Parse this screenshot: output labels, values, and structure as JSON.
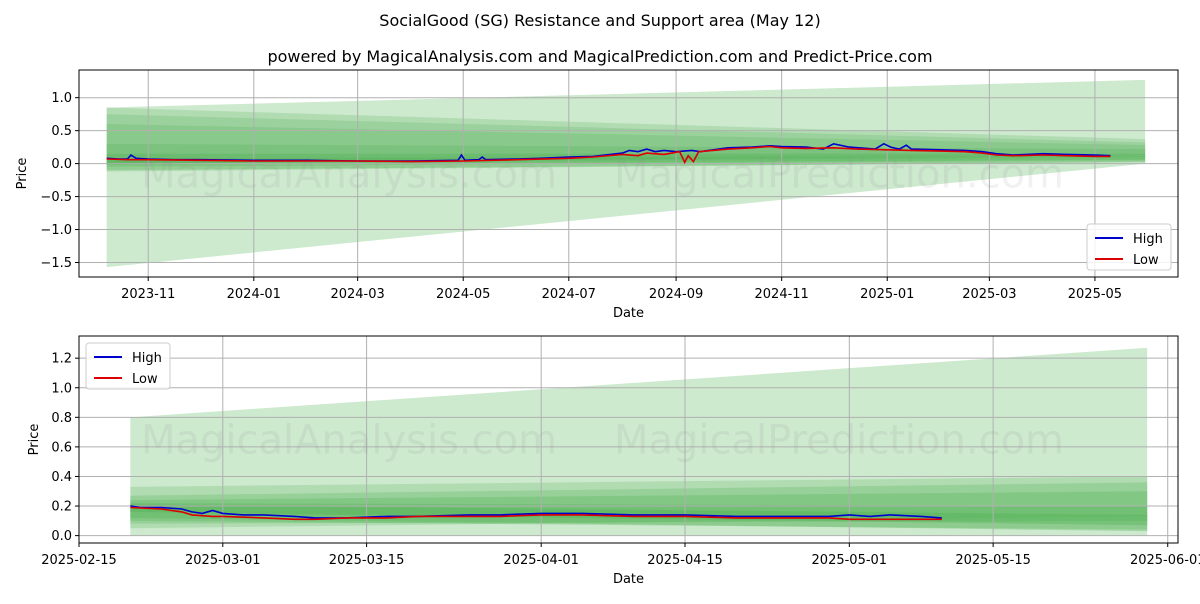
{
  "header": {
    "title": "SocialGood (SG) Resistance and Support area (May 12)",
    "subtitle": "powered by MagicalAnalysis.com and MagicalPrediction.com and Predict-Price.com"
  },
  "watermarks": [
    "MagicalAnalysis.com",
    "MagicalPrediction.com"
  ],
  "colors": {
    "high": "#0000cc",
    "low": "#dd0000",
    "band": "#4caf50",
    "grid": "#b0b0b0"
  },
  "chart_data": [
    {
      "type": "line",
      "id": "top",
      "xlabel": "Date",
      "ylabel": "Price",
      "xlim": [
        "2023-09-22",
        "2025-06-18"
      ],
      "ylim": [
        -1.72,
        1.42
      ],
      "xticks": [
        {
          "date": "2023-11-01",
          "label": "2023-11"
        },
        {
          "date": "2024-01-01",
          "label": "2024-01"
        },
        {
          "date": "2024-03-01",
          "label": "2024-03"
        },
        {
          "date": "2024-05-01",
          "label": "2024-05"
        },
        {
          "date": "2024-07-01",
          "label": "2024-07"
        },
        {
          "date": "2024-09-01",
          "label": "2024-09"
        },
        {
          "date": "2024-11-01",
          "label": "2024-11"
        },
        {
          "date": "2025-01-01",
          "label": "2025-01"
        },
        {
          "date": "2025-03-01",
          "label": "2025-03"
        },
        {
          "date": "2025-05-01",
          "label": "2025-05"
        }
      ],
      "yticks": [
        {
          "v": 1.0,
          "label": "1.0"
        },
        {
          "v": 0.5,
          "label": "0.5"
        },
        {
          "v": 0.0,
          "label": "0.0"
        },
        {
          "v": -0.5,
          "label": "−0.5"
        },
        {
          "v": -1.0,
          "label": "−1.0"
        },
        {
          "v": -1.5,
          "label": "−1.5"
        }
      ],
      "legend": {
        "position": "lower-right",
        "entries": [
          "High",
          "Low"
        ]
      },
      "bands": [
        {
          "x0": "2023-10-08",
          "x1": "2025-05-30",
          "y0a": -1.57,
          "y0b": 0.85,
          "y1a": 0.0,
          "y1b": 1.27,
          "opacity": 0.28
        },
        {
          "x0": "2023-10-08",
          "x1": "2025-05-30",
          "y0a": 0.0,
          "y0b": 0.85,
          "y1a": 0.13,
          "y1b": 0.37,
          "opacity": 0.22
        },
        {
          "x0": "2023-10-08",
          "x1": "2025-05-30",
          "y0a": 0.0,
          "y0b": 0.75,
          "y1a": 0.1,
          "y1b": 0.32,
          "opacity": 0.22
        },
        {
          "x0": "2023-10-08",
          "x1": "2025-05-30",
          "y0a": -0.12,
          "y0b": 0.6,
          "y1a": 0.03,
          "y1b": 0.28,
          "opacity": 0.22
        },
        {
          "x0": "2023-10-08",
          "x1": "2025-05-30",
          "y0a": -0.05,
          "y0b": 0.3,
          "y1a": 0.05,
          "y1b": 0.22,
          "opacity": 0.25
        },
        {
          "x0": "2023-10-08",
          "x1": "2025-05-30",
          "y0a": -0.1,
          "y0b": 0.15,
          "y1a": 0.02,
          "y1b": 0.15,
          "opacity": 0.3
        },
        {
          "x0": "2023-10-08",
          "x1": "2025-05-30",
          "y0a": -0.02,
          "y0b": 0.08,
          "y1a": 0.06,
          "y1b": 0.12,
          "opacity": 0.3
        }
      ],
      "series": [
        {
          "name": "High",
          "points": [
            [
              "2023-10-08",
              0.08
            ],
            [
              "2023-10-15",
              0.07
            ],
            [
              "2023-10-20",
              0.07
            ],
            [
              "2023-10-22",
              0.13
            ],
            [
              "2023-10-25",
              0.08
            ],
            [
              "2023-11-01",
              0.07
            ],
            [
              "2023-11-15",
              0.06
            ],
            [
              "2023-12-01",
              0.06
            ],
            [
              "2024-01-01",
              0.05
            ],
            [
              "2024-02-01",
              0.05
            ],
            [
              "2024-03-01",
              0.04
            ],
            [
              "2024-04-01",
              0.04
            ],
            [
              "2024-04-28",
              0.05
            ],
            [
              "2024-04-30",
              0.13
            ],
            [
              "2024-05-02",
              0.05
            ],
            [
              "2024-05-10",
              0.06
            ],
            [
              "2024-05-12",
              0.1
            ],
            [
              "2024-05-14",
              0.06
            ],
            [
              "2024-06-01",
              0.07
            ],
            [
              "2024-06-15",
              0.08
            ],
            [
              "2024-07-01",
              0.1
            ],
            [
              "2024-07-15",
              0.11
            ],
            [
              "2024-08-01",
              0.16
            ],
            [
              "2024-08-05",
              0.2
            ],
            [
              "2024-08-10",
              0.18
            ],
            [
              "2024-08-15",
              0.22
            ],
            [
              "2024-08-20",
              0.18
            ],
            [
              "2024-08-25",
              0.2
            ],
            [
              "2024-09-01",
              0.18
            ],
            [
              "2024-09-10",
              0.2
            ],
            [
              "2024-09-15",
              0.18
            ],
            [
              "2024-09-20",
              0.2
            ],
            [
              "2024-10-01",
              0.24
            ],
            [
              "2024-10-15",
              0.25
            ],
            [
              "2024-10-25",
              0.27
            ],
            [
              "2024-11-01",
              0.26
            ],
            [
              "2024-11-15",
              0.25
            ],
            [
              "2024-11-25",
              0.22
            ],
            [
              "2024-12-01",
              0.3
            ],
            [
              "2024-12-10",
              0.25
            ],
            [
              "2024-12-25",
              0.22
            ],
            [
              "2024-12-30",
              0.3
            ],
            [
              "2025-01-03",
              0.25
            ],
            [
              "2025-01-08",
              0.22
            ],
            [
              "2025-01-12",
              0.28
            ],
            [
              "2025-01-15",
              0.22
            ],
            [
              "2025-02-01",
              0.21
            ],
            [
              "2025-02-15",
              0.2
            ],
            [
              "2025-02-25",
              0.18
            ],
            [
              "2025-03-05",
              0.15
            ],
            [
              "2025-03-15",
              0.13
            ],
            [
              "2025-04-01",
              0.15
            ],
            [
              "2025-04-15",
              0.14
            ],
            [
              "2025-05-01",
              0.13
            ],
            [
              "2025-05-10",
              0.12
            ]
          ]
        },
        {
          "name": "Low",
          "points": [
            [
              "2023-10-08",
              0.07
            ],
            [
              "2023-10-20",
              0.06
            ],
            [
              "2023-11-01",
              0.06
            ],
            [
              "2023-12-01",
              0.05
            ],
            [
              "2024-01-01",
              0.04
            ],
            [
              "2024-02-01",
              0.04
            ],
            [
              "2024-03-01",
              0.04
            ],
            [
              "2024-04-01",
              0.03
            ],
            [
              "2024-05-01",
              0.04
            ],
            [
              "2024-06-01",
              0.06
            ],
            [
              "2024-07-01",
              0.08
            ],
            [
              "2024-07-15",
              0.1
            ],
            [
              "2024-08-01",
              0.14
            ],
            [
              "2024-08-10",
              0.12
            ],
            [
              "2024-08-15",
              0.16
            ],
            [
              "2024-08-25",
              0.14
            ],
            [
              "2024-09-03",
              0.18
            ],
            [
              "2024-09-06",
              0.02
            ],
            [
              "2024-09-08",
              0.12
            ],
            [
              "2024-09-11",
              0.03
            ],
            [
              "2024-09-14",
              0.18
            ],
            [
              "2024-10-01",
              0.22
            ],
            [
              "2024-10-15",
              0.24
            ],
            [
              "2024-10-25",
              0.26
            ],
            [
              "2024-11-01",
              0.24
            ],
            [
              "2024-11-15",
              0.23
            ],
            [
              "2024-12-01",
              0.24
            ],
            [
              "2024-12-15",
              0.22
            ],
            [
              "2025-01-01",
              0.21
            ],
            [
              "2025-01-15",
              0.2
            ],
            [
              "2025-02-01",
              0.19
            ],
            [
              "2025-02-15",
              0.18
            ],
            [
              "2025-02-25",
              0.16
            ],
            [
              "2025-03-05",
              0.13
            ],
            [
              "2025-03-15",
              0.12
            ],
            [
              "2025-04-01",
              0.13
            ],
            [
              "2025-04-15",
              0.12
            ],
            [
              "2025-05-01",
              0.11
            ],
            [
              "2025-05-10",
              0.11
            ]
          ]
        }
      ]
    },
    {
      "type": "line",
      "id": "bottom",
      "xlabel": "Date",
      "ylabel": "Price",
      "xlim": [
        "2025-02-15",
        "2025-06-02"
      ],
      "ylim": [
        -0.05,
        1.35
      ],
      "xticks": [
        {
          "date": "2025-02-15",
          "label": "2025-02-15"
        },
        {
          "date": "2025-03-01",
          "label": "2025-03-01"
        },
        {
          "date": "2025-03-15",
          "label": "2025-03-15"
        },
        {
          "date": "2025-04-01",
          "label": "2025-04-01"
        },
        {
          "date": "2025-04-15",
          "label": "2025-04-15"
        },
        {
          "date": "2025-05-01",
          "label": "2025-05-01"
        },
        {
          "date": "2025-05-15",
          "label": "2025-05-15"
        },
        {
          "date": "2025-06-01",
          "label": "2025-06-01"
        }
      ],
      "yticks": [
        {
          "v": 1.2,
          "label": "1.2"
        },
        {
          "v": 1.0,
          "label": "1.0"
        },
        {
          "v": 0.8,
          "label": "0.8"
        },
        {
          "v": 0.6,
          "label": "0.6"
        },
        {
          "v": 0.4,
          "label": "0.4"
        },
        {
          "v": 0.2,
          "label": "0.2"
        },
        {
          "v": 0.0,
          "label": "0.0"
        }
      ],
      "legend": {
        "position": "upper-left",
        "entries": [
          "High",
          "Low"
        ]
      },
      "bands": [
        {
          "x0": "2025-02-20",
          "x1": "2025-05-30",
          "y0a": 0.0,
          "y0b": 0.8,
          "y1a": 0.0,
          "y1b": 1.27,
          "opacity": 0.28
        },
        {
          "x0": "2025-02-20",
          "x1": "2025-05-30",
          "y0a": 0.05,
          "y0b": 0.33,
          "y1a": 0.13,
          "y1b": 0.4,
          "opacity": 0.22
        },
        {
          "x0": "2025-02-20",
          "x1": "2025-05-30",
          "y0a": 0.08,
          "y0b": 0.27,
          "y1a": 0.1,
          "y1b": 0.36,
          "opacity": 0.25
        },
        {
          "x0": "2025-02-20",
          "x1": "2025-05-30",
          "y0a": 0.1,
          "y0b": 0.24,
          "y1a": 0.04,
          "y1b": 0.3,
          "opacity": 0.28
        },
        {
          "x0": "2025-02-20",
          "x1": "2025-05-30",
          "y0a": 0.12,
          "y0b": 0.22,
          "y1a": 0.03,
          "y1b": 0.2,
          "opacity": 0.3
        },
        {
          "x0": "2025-02-20",
          "x1": "2025-05-30",
          "y0a": 0.16,
          "y0b": 0.21,
          "y1a": 0.07,
          "y1b": 0.14,
          "opacity": 0.35
        }
      ],
      "series": [
        {
          "name": "High",
          "points": [
            [
              "2025-02-20",
              0.2
            ],
            [
              "2025-02-21",
              0.19
            ],
            [
              "2025-02-23",
              0.19
            ],
            [
              "2025-02-25",
              0.18
            ],
            [
              "2025-02-26",
              0.16
            ],
            [
              "2025-02-27",
              0.15
            ],
            [
              "2025-02-28",
              0.17
            ],
            [
              "2025-03-01",
              0.15
            ],
            [
              "2025-03-03",
              0.14
            ],
            [
              "2025-03-05",
              0.14
            ],
            [
              "2025-03-08",
              0.13
            ],
            [
              "2025-03-10",
              0.12
            ],
            [
              "2025-03-13",
              0.12
            ],
            [
              "2025-03-17",
              0.13
            ],
            [
              "2025-03-20",
              0.13
            ],
            [
              "2025-03-25",
              0.14
            ],
            [
              "2025-03-28",
              0.14
            ],
            [
              "2025-04-01",
              0.15
            ],
            [
              "2025-04-05",
              0.15
            ],
            [
              "2025-04-10",
              0.14
            ],
            [
              "2025-04-15",
              0.14
            ],
            [
              "2025-04-20",
              0.13
            ],
            [
              "2025-04-25",
              0.13
            ],
            [
              "2025-04-29",
              0.13
            ],
            [
              "2025-05-01",
              0.14
            ],
            [
              "2025-05-03",
              0.13
            ],
            [
              "2025-05-05",
              0.14
            ],
            [
              "2025-05-08",
              0.13
            ],
            [
              "2025-05-10",
              0.12
            ]
          ]
        },
        {
          "name": "Low",
          "points": [
            [
              "2025-02-20",
              0.19
            ],
            [
              "2025-02-23",
              0.18
            ],
            [
              "2025-02-25",
              0.16
            ],
            [
              "2025-02-26",
              0.14
            ],
            [
              "2025-02-28",
              0.13
            ],
            [
              "2025-03-01",
              0.13
            ],
            [
              "2025-03-05",
              0.12
            ],
            [
              "2025-03-08",
              0.11
            ],
            [
              "2025-03-10",
              0.11
            ],
            [
              "2025-03-13",
              0.12
            ],
            [
              "2025-03-17",
              0.12
            ],
            [
              "2025-03-20",
              0.13
            ],
            [
              "2025-03-25",
              0.13
            ],
            [
              "2025-03-28",
              0.13
            ],
            [
              "2025-04-01",
              0.14
            ],
            [
              "2025-04-05",
              0.14
            ],
            [
              "2025-04-10",
              0.13
            ],
            [
              "2025-04-15",
              0.13
            ],
            [
              "2025-04-20",
              0.12
            ],
            [
              "2025-04-25",
              0.12
            ],
            [
              "2025-04-29",
              0.12
            ],
            [
              "2025-05-01",
              0.11
            ],
            [
              "2025-05-03",
              0.11
            ],
            [
              "2025-05-05",
              0.11
            ],
            [
              "2025-05-08",
              0.11
            ],
            [
              "2025-05-10",
              0.11
            ]
          ]
        }
      ]
    }
  ]
}
